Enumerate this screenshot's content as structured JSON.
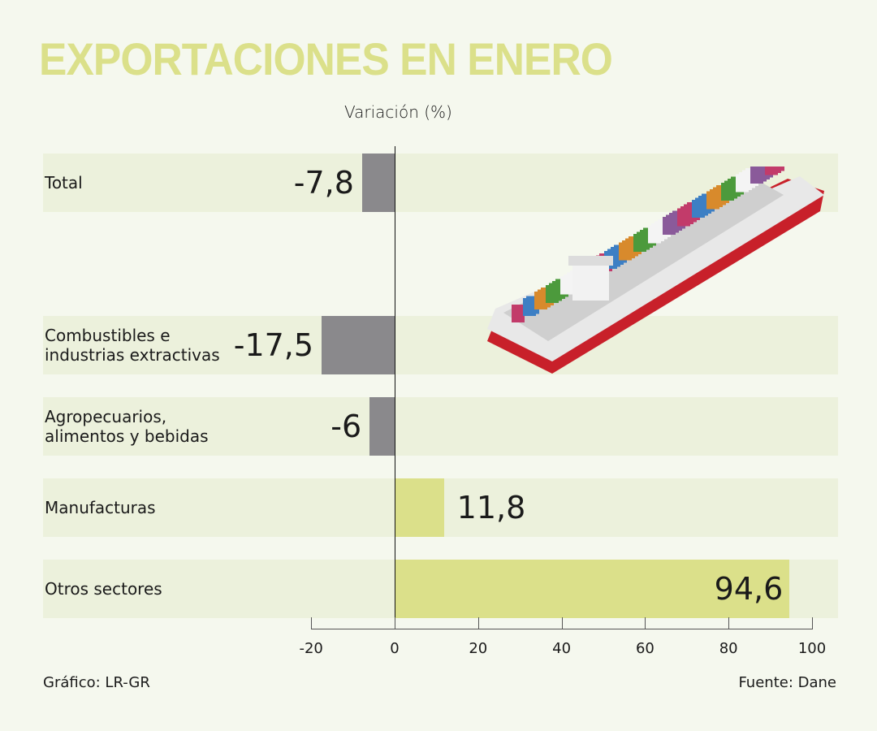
{
  "title": "EXPORTACIONES EN ENERO",
  "subtitle": "Variación (%)",
  "footer": {
    "left": "Gráfico: LR-GR",
    "right": "Fuente: Dane"
  },
  "colors": {
    "negative": "#8a898c",
    "positive": "#dbe08a",
    "band": "#ecf1dc",
    "background": "#f5f8ee",
    "title": "#dbe08a"
  },
  "illustration": "container-ship",
  "chart_data": {
    "type": "bar",
    "orientation": "horizontal",
    "title": "EXPORTACIONES EN ENERO",
    "xlabel": "Variación (%)",
    "categories": [
      "Total",
      "Combustibles e industrias extractivas",
      "Agropecuarios, alimentos y bebidas",
      "Manufacturas",
      "Otros sectores"
    ],
    "values": [
      -7.8,
      -17.5,
      -6,
      11.8,
      94.6
    ],
    "value_labels": [
      "-7,8",
      "-17,5",
      "-6",
      "11,8",
      "94,6"
    ],
    "xlim": [
      -20,
      100
    ],
    "xticks": [
      "-20",
      "0",
      "20",
      "40",
      "60",
      "80",
      "100"
    ],
    "grid": false
  }
}
